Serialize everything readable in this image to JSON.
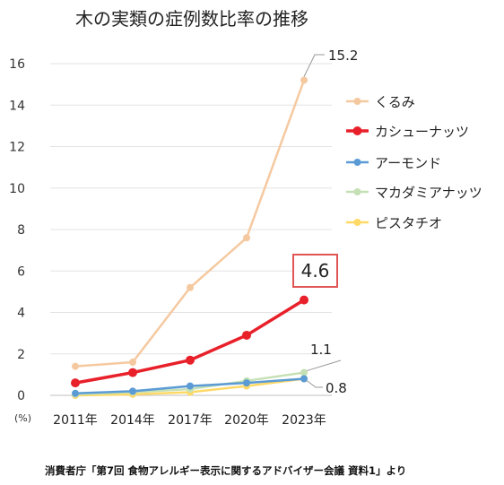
{
  "chart_data": {
    "type": "line",
    "title": "木の実類の症例数比率の推移",
    "unit_label": "(%)",
    "categories": [
      "2011年",
      "2014年",
      "2017年",
      "2020年",
      "2023年"
    ],
    "ylim": [
      0,
      16
    ],
    "yticks": [
      0,
      2,
      4,
      6,
      8,
      10,
      12,
      14,
      16
    ],
    "grid": true,
    "legend_position": "right",
    "series": [
      {
        "name": "くるみ",
        "color": "#f5c9a0",
        "values": [
          1.4,
          1.6,
          5.2,
          7.6,
          15.2
        ]
      },
      {
        "name": "カシューナッツ",
        "color": "#e8202a",
        "values": [
          0.6,
          1.1,
          1.7,
          2.9,
          4.6
        ]
      },
      {
        "name": "アーモンド",
        "color": "#5b9bd5",
        "values": [
          0.1,
          0.2,
          0.45,
          0.6,
          0.8
        ]
      },
      {
        "name": "マカダミアナッツ",
        "color": "#c5e0b4",
        "values": [
          0.05,
          0.15,
          0.3,
          0.7,
          1.1
        ]
      },
      {
        "name": "ピスタチオ",
        "color": "#ffd966",
        "values": [
          0.0,
          0.05,
          0.15,
          0.45,
          0.8
        ]
      }
    ],
    "annotations": [
      {
        "text": "15.2",
        "series": "くるみ"
      },
      {
        "text": "4.6",
        "series": "カシューナッツ",
        "highlight_color": "#e05555"
      },
      {
        "text": "1.1",
        "series": "マカダミアナッツ"
      },
      {
        "text": "0.8",
        "series": "ピスタチオ"
      }
    ],
    "source": "消費者庁「第7回 食物アレルギー表示に関するアドバイザー会議 資料1」より"
  }
}
